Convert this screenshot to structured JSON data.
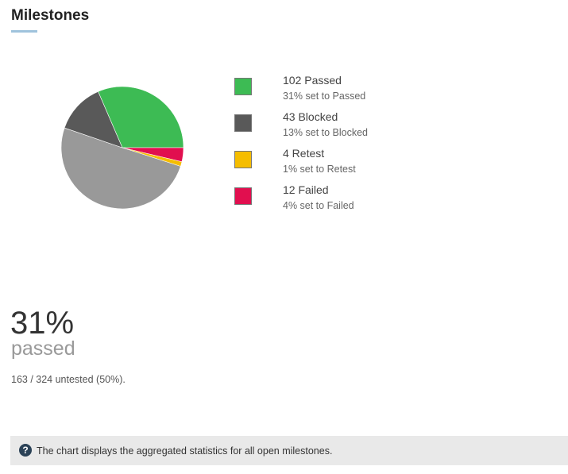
{
  "header": {
    "title": "Milestones"
  },
  "chart_data": {
    "type": "pie",
    "title": "",
    "slices": [
      {
        "name": "Passed",
        "value": 102,
        "color": "#3dbb54"
      },
      {
        "name": "Failed",
        "value": 12,
        "color": "#e10f4f"
      },
      {
        "name": "Retest",
        "value": 4,
        "color": "#f5bd00"
      },
      {
        "name": "Untested",
        "value": 163,
        "color": "#999999"
      },
      {
        "name": "Blocked",
        "value": 43,
        "color": "#595959"
      }
    ],
    "total": 324
  },
  "legend": {
    "items": [
      {
        "label": "102 Passed",
        "sub": "31% set to Passed",
        "color": "#3dbb54"
      },
      {
        "label": "43 Blocked",
        "sub": "13% set to Blocked",
        "color": "#595959"
      },
      {
        "label": "4 Retest",
        "sub": "1% set to Retest",
        "color": "#f5bd00"
      },
      {
        "label": "12 Failed",
        "sub": "4% set to Failed",
        "color": "#e10f4f"
      }
    ]
  },
  "summary": {
    "percent": "31%",
    "label": "passed",
    "untested": "163 / 324 untested (50%)."
  },
  "info": {
    "icon": "question-circle-icon",
    "text": "The chart displays the aggregated statistics for all open milestones."
  }
}
